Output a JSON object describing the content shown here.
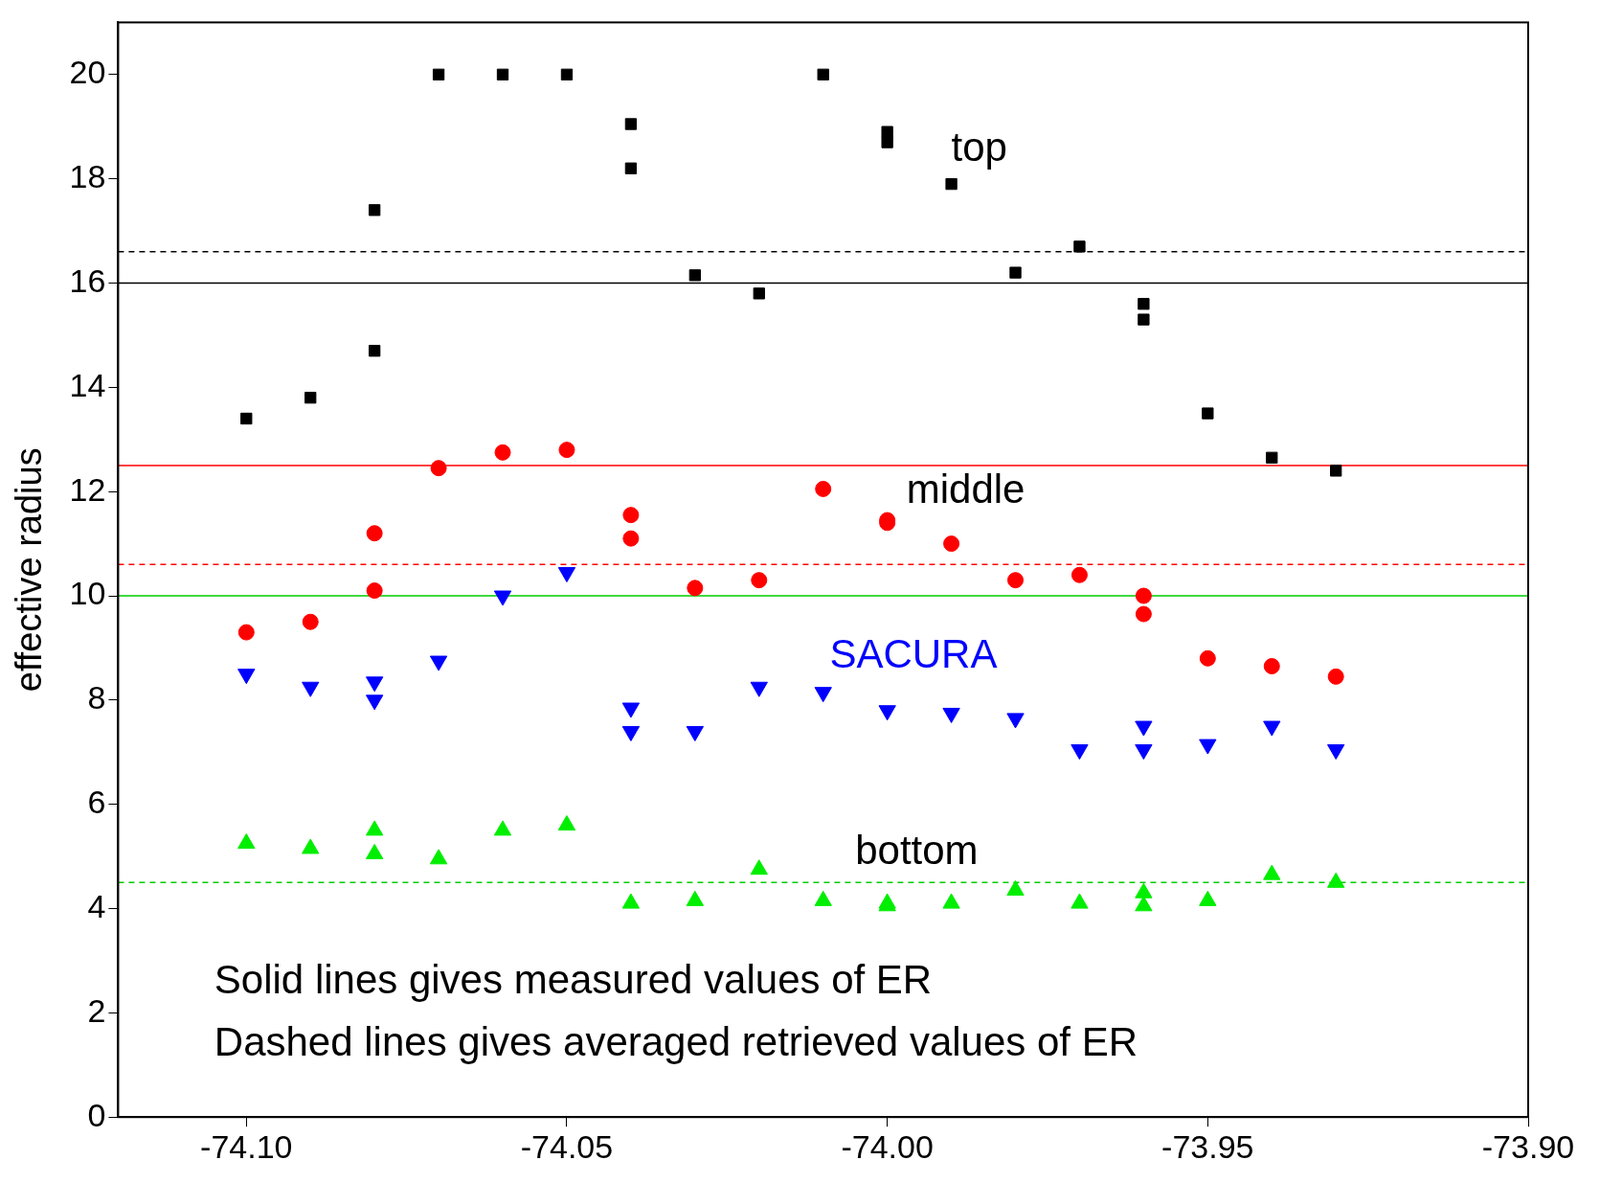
{
  "chart_data": {
    "type": "scatter",
    "y_label": "effective radius",
    "xlim": [
      -74.12,
      -73.9
    ],
    "xticks": [
      {
        "value": -74.1,
        "label": "-74.10"
      },
      -74.05,
      {
        "value": -74.0,
        "label": "-74.00"
      },
      -73.95,
      {
        "value": -73.9,
        "label": "-73.90"
      }
    ],
    "ylim": [
      0,
      21
    ],
    "yticks": [
      0,
      2,
      4,
      6,
      8,
      10,
      12,
      14,
      16,
      18,
      20
    ],
    "grid": false,
    "series": [
      {
        "name": "top",
        "color": "#000000",
        "marker": "square",
        "x": [
          -74.1,
          -74.09,
          -74.08,
          -74.08,
          -74.07,
          -74.06,
          -74.05,
          -74.04,
          -74.04,
          -74.03,
          -74.02,
          -74.01,
          -74.0,
          -74.0,
          -73.99,
          -73.98,
          -73.97,
          -73.96,
          -73.96,
          -73.95,
          -73.94,
          -73.93
        ],
        "values": [
          13.4,
          13.8,
          17.4,
          14.7,
          20.0,
          20.0,
          20.0,
          19.05,
          18.2,
          16.15,
          15.8,
          20.0,
          18.9,
          18.7,
          17.9,
          16.2,
          16.7,
          15.6,
          15.3,
          13.5,
          12.65,
          12.4
        ]
      },
      {
        "name": "middle",
        "color": "#ff0000",
        "marker": "circle",
        "x": [
          -74.1,
          -74.09,
          -74.08,
          -74.08,
          -74.07,
          -74.06,
          -74.05,
          -74.04,
          -74.04,
          -74.03,
          -74.02,
          -74.01,
          -74.0,
          -74.0,
          -73.99,
          -73.98,
          -73.97,
          -73.96,
          -73.96,
          -73.95,
          -73.94,
          -73.93
        ],
        "values": [
          9.3,
          9.5,
          11.2,
          10.1,
          12.45,
          12.75,
          12.8,
          11.55,
          11.1,
          10.15,
          10.3,
          12.05,
          11.45,
          11.4,
          11.0,
          10.3,
          10.4,
          10.0,
          9.65,
          8.8,
          8.65,
          8.45
        ]
      },
      {
        "name": "SACURA",
        "color": "#0000ff",
        "marker": "triangle-down",
        "x": [
          -74.1,
          -74.09,
          -74.08,
          -74.08,
          -74.07,
          -74.06,
          -74.05,
          -74.04,
          -74.04,
          -74.03,
          -74.02,
          -74.01,
          -74.0,
          -73.99,
          -73.98,
          -73.97,
          -73.96,
          -73.96,
          -73.95,
          -73.94,
          -73.93
        ],
        "values": [
          8.5,
          8.25,
          8.35,
          8.0,
          8.75,
          10.0,
          10.45,
          7.85,
          7.4,
          7.4,
          8.25,
          8.15,
          7.8,
          7.75,
          7.65,
          7.05,
          7.5,
          7.05,
          7.15,
          7.5,
          7.05
        ]
      },
      {
        "name": "bottom",
        "color": "#00ee00",
        "marker": "triangle-up",
        "x": [
          -74.1,
          -74.09,
          -74.08,
          -74.08,
          -74.07,
          -74.06,
          -74.05,
          -74.04,
          -74.03,
          -74.02,
          -74.01,
          -74.0,
          -74.0,
          -73.99,
          -73.98,
          -73.97,
          -73.96,
          -73.96,
          -73.95,
          -73.94,
          -73.93
        ],
        "values": [
          5.25,
          5.15,
          5.5,
          5.05,
          4.95,
          5.5,
          5.6,
          4.1,
          4.15,
          4.75,
          4.15,
          4.1,
          4.05,
          4.1,
          4.35,
          4.1,
          4.3,
          4.05,
          4.15,
          4.65,
          4.5
        ]
      }
    ],
    "reference_lines": [
      {
        "value": 16,
        "color": "#000000",
        "line_style": "solid"
      },
      {
        "value": 16.6,
        "color": "#000000",
        "line_style": "dashed"
      },
      {
        "value": 12.5,
        "color": "#ff0000",
        "line_style": "solid"
      },
      {
        "value": 10.6,
        "color": "#ff0000",
        "line_style": "dashed"
      },
      {
        "value": 10,
        "color": "#00cc00",
        "line_style": "solid"
      },
      {
        "value": 4.5,
        "color": "#00cc00",
        "line_style": "dashed"
      }
    ],
    "annotations": [
      {
        "text": "top",
        "x": -73.99,
        "y": 18.55,
        "color": "#000000"
      },
      {
        "text": "middle",
        "x": -73.997,
        "y": 12.0,
        "color": "#000000"
      },
      {
        "text": "SACURA",
        "x": -74.009,
        "y": 8.83,
        "color": "#0000ff"
      },
      {
        "text": "bottom",
        "x": -74.005,
        "y": 5.06,
        "color": "#000000"
      },
      {
        "text": "Solid lines gives measured values of ER",
        "x": -74.105,
        "y": 2.59,
        "color": "#000000"
      },
      {
        "text": "Dashed lines gives averaged retrieved values of ER",
        "x": -74.105,
        "y": 1.39,
        "color": "#000000"
      }
    ]
  }
}
